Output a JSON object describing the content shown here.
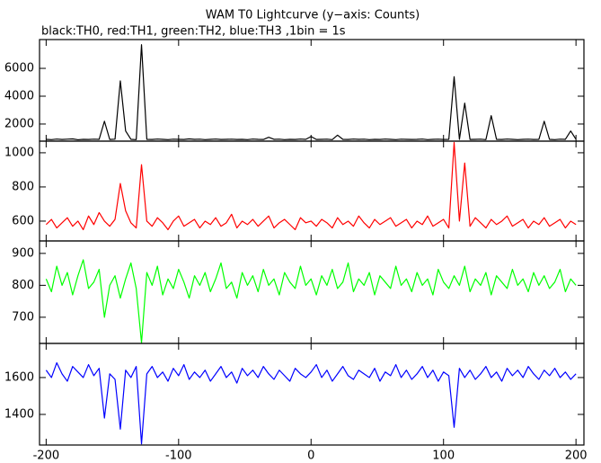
{
  "chart_data": [
    {
      "type": "line",
      "title": "WAM T0 Lightcurve (y−axis: Counts)",
      "subtitle": "black:TH0, red:TH1, green:TH2, blue:TH3 ,1bin = 1s",
      "color": "#000000",
      "xlim": [
        -205,
        206
      ],
      "xticks": [
        -200,
        -100,
        0,
        100,
        200
      ],
      "ylim": [
        770,
        8070
      ],
      "yticks": [
        2000,
        4000,
        6000
      ],
      "x": [
        -200,
        -196,
        -192,
        -188,
        -184,
        -180,
        -176,
        -172,
        -168,
        -164,
        -160,
        -156,
        -152,
        -148,
        -144,
        -140,
        -136,
        -132,
        -128,
        -124,
        -120,
        -116,
        -112,
        -108,
        -104,
        -100,
        -96,
        -92,
        -88,
        -84,
        -80,
        -76,
        -72,
        -68,
        -64,
        -60,
        -56,
        -52,
        -48,
        -44,
        -40,
        -36,
        -32,
        -28,
        -24,
        -20,
        -16,
        -12,
        -8,
        -4,
        0,
        4,
        8,
        12,
        16,
        20,
        24,
        28,
        32,
        36,
        40,
        44,
        48,
        52,
        56,
        60,
        64,
        68,
        72,
        76,
        80,
        84,
        88,
        92,
        96,
        100,
        104,
        108,
        112,
        116,
        120,
        124,
        128,
        132,
        136,
        140,
        144,
        148,
        152,
        156,
        160,
        164,
        168,
        172,
        176,
        180,
        184,
        188,
        192,
        196,
        200
      ],
      "values": [
        900,
        880,
        920,
        890,
        910,
        930,
        870,
        900,
        890,
        910,
        900,
        2200,
        890,
        910,
        5100,
        1500,
        900,
        880,
        7700,
        900,
        890,
        920,
        900,
        880,
        910,
        900,
        890,
        930,
        900,
        910,
        880,
        900,
        920,
        890,
        900,
        910,
        890,
        900,
        880,
        920,
        900,
        890,
        1050,
        900,
        910,
        880,
        900,
        890,
        920,
        900,
        1100,
        890,
        900,
        910,
        880,
        1200,
        900,
        890,
        920,
        900,
        910,
        880,
        900,
        890,
        920,
        900,
        880,
        910,
        900,
        890,
        900,
        920,
        880,
        900,
        910,
        890,
        900,
        5400,
        900,
        3500,
        890,
        900,
        910,
        880,
        2600,
        900,
        890,
        920,
        900,
        880,
        900,
        910,
        890,
        900,
        2200,
        900,
        880,
        910,
        900,
        1500,
        900
      ]
    },
    {
      "type": "line",
      "color": "#ff0000",
      "xlim": [
        -205,
        206
      ],
      "xticks": [
        -200,
        -100,
        0,
        100,
        200
      ],
      "ylim": [
        484,
        1068
      ],
      "yticks": [
        600,
        800,
        1000
      ],
      "x": [
        -200,
        -196,
        -192,
        -188,
        -184,
        -180,
        -176,
        -172,
        -168,
        -164,
        -160,
        -156,
        -152,
        -148,
        -144,
        -140,
        -136,
        -132,
        -128,
        -124,
        -120,
        -116,
        -112,
        -108,
        -104,
        -100,
        -96,
        -92,
        -88,
        -84,
        -80,
        -76,
        -72,
        -68,
        -64,
        -60,
        -56,
        -52,
        -48,
        -44,
        -40,
        -36,
        -32,
        -28,
        -24,
        -20,
        -16,
        -12,
        -8,
        -4,
        0,
        4,
        8,
        12,
        16,
        20,
        24,
        28,
        32,
        36,
        40,
        44,
        48,
        52,
        56,
        60,
        64,
        68,
        72,
        76,
        80,
        84,
        88,
        92,
        96,
        100,
        104,
        108,
        112,
        116,
        120,
        124,
        128,
        132,
        136,
        140,
        144,
        148,
        152,
        156,
        160,
        164,
        168,
        172,
        176,
        180,
        184,
        188,
        192,
        196,
        200
      ],
      "values": [
        580,
        610,
        560,
        590,
        620,
        570,
        600,
        550,
        630,
        580,
        650,
        600,
        570,
        610,
        820,
        660,
        590,
        560,
        930,
        600,
        570,
        620,
        590,
        550,
        600,
        630,
        570,
        590,
        610,
        560,
        600,
        580,
        620,
        570,
        590,
        640,
        560,
        600,
        580,
        610,
        570,
        600,
        630,
        560,
        590,
        610,
        580,
        550,
        620,
        590,
        600,
        570,
        610,
        590,
        560,
        620,
        580,
        600,
        570,
        630,
        590,
        560,
        610,
        580,
        600,
        620,
        570,
        590,
        610,
        560,
        600,
        580,
        630,
        570,
        590,
        610,
        560,
        1060,
        600,
        940,
        570,
        620,
        590,
        560,
        610,
        580,
        600,
        630,
        570,
        590,
        610,
        560,
        600,
        580,
        620,
        570,
        590,
        610,
        560,
        600,
        580
      ]
    },
    {
      "type": "line",
      "color": "#00ff00",
      "xlim": [
        -205,
        206
      ],
      "xticks": [
        -200,
        -100,
        0,
        100,
        200
      ],
      "ylim": [
        618,
        939
      ],
      "yticks": [
        700,
        800,
        900
      ],
      "x": [
        -200,
        -196,
        -192,
        -188,
        -184,
        -180,
        -176,
        -172,
        -168,
        -164,
        -160,
        -156,
        -152,
        -148,
        -144,
        -140,
        -136,
        -132,
        -128,
        -124,
        -120,
        -116,
        -112,
        -108,
        -104,
        -100,
        -96,
        -92,
        -88,
        -84,
        -80,
        -76,
        -72,
        -68,
        -64,
        -60,
        -56,
        -52,
        -48,
        -44,
        -40,
        -36,
        -32,
        -28,
        -24,
        -20,
        -16,
        -12,
        -8,
        -4,
        0,
        4,
        8,
        12,
        16,
        20,
        24,
        28,
        32,
        36,
        40,
        44,
        48,
        52,
        56,
        60,
        64,
        68,
        72,
        76,
        80,
        84,
        88,
        92,
        96,
        100,
        104,
        108,
        112,
        116,
        120,
        124,
        128,
        132,
        136,
        140,
        144,
        148,
        152,
        156,
        160,
        164,
        168,
        172,
        176,
        180,
        184,
        188,
        192,
        196,
        200
      ],
      "values": [
        820,
        780,
        860,
        800,
        840,
        770,
        830,
        880,
        790,
        810,
        850,
        700,
        800,
        830,
        760,
        820,
        870,
        790,
        620,
        840,
        800,
        860,
        770,
        820,
        790,
        850,
        810,
        760,
        830,
        800,
        840,
        780,
        820,
        870,
        790,
        810,
        760,
        840,
        800,
        830,
        780,
        850,
        800,
        820,
        770,
        840,
        810,
        790,
        860,
        800,
        820,
        770,
        830,
        800,
        850,
        790,
        810,
        870,
        780,
        820,
        800,
        840,
        770,
        830,
        810,
        790,
        860,
        800,
        820,
        780,
        840,
        800,
        820,
        770,
        850,
        810,
        790,
        830,
        800,
        860,
        780,
        820,
        800,
        840,
        770,
        830,
        810,
        790,
        850,
        800,
        820,
        780,
        840,
        800,
        830,
        790,
        810,
        850,
        780,
        820,
        800
      ]
    },
    {
      "type": "line",
      "color": "#0000ff",
      "xlim": [
        -205,
        206
      ],
      "xticks": [
        -200,
        -100,
        0,
        100,
        200
      ],
      "ylim": [
        1234,
        1785
      ],
      "yticks": [
        1400,
        1600
      ],
      "x": [
        -200,
        -196,
        -192,
        -188,
        -184,
        -180,
        -176,
        -172,
        -168,
        -164,
        -160,
        -156,
        -152,
        -148,
        -144,
        -140,
        -136,
        -132,
        -128,
        -124,
        -120,
        -116,
        -112,
        -108,
        -104,
        -100,
        -96,
        -92,
        -88,
        -84,
        -80,
        -76,
        -72,
        -68,
        -64,
        -60,
        -56,
        -52,
        -48,
        -44,
        -40,
        -36,
        -32,
        -28,
        -24,
        -20,
        -16,
        -12,
        -8,
        -4,
        0,
        4,
        8,
        12,
        16,
        20,
        24,
        28,
        32,
        36,
        40,
        44,
        48,
        52,
        56,
        60,
        64,
        68,
        72,
        76,
        80,
        84,
        88,
        92,
        96,
        100,
        104,
        108,
        112,
        116,
        120,
        124,
        128,
        132,
        136,
        140,
        144,
        148,
        152,
        156,
        160,
        164,
        168,
        172,
        176,
        180,
        184,
        188,
        192,
        196,
        200
      ],
      "values": [
        1640,
        1600,
        1680,
        1620,
        1580,
        1660,
        1630,
        1600,
        1670,
        1610,
        1650,
        1380,
        1620,
        1590,
        1320,
        1640,
        1600,
        1660,
        1240,
        1620,
        1660,
        1600,
        1630,
        1580,
        1650,
        1610,
        1670,
        1590,
        1630,
        1600,
        1640,
        1580,
        1620,
        1660,
        1600,
        1630,
        1570,
        1650,
        1610,
        1640,
        1600,
        1660,
        1620,
        1590,
        1640,
        1610,
        1580,
        1650,
        1620,
        1600,
        1630,
        1670,
        1600,
        1640,
        1580,
        1620,
        1660,
        1610,
        1590,
        1640,
        1620,
        1600,
        1650,
        1580,
        1630,
        1610,
        1670,
        1600,
        1640,
        1590,
        1620,
        1660,
        1600,
        1640,
        1580,
        1630,
        1610,
        1330,
        1650,
        1600,
        1640,
        1590,
        1620,
        1660,
        1600,
        1630,
        1580,
        1650,
        1610,
        1640,
        1600,
        1660,
        1620,
        1590,
        1640,
        1610,
        1650,
        1600,
        1630,
        1590,
        1620
      ]
    }
  ]
}
